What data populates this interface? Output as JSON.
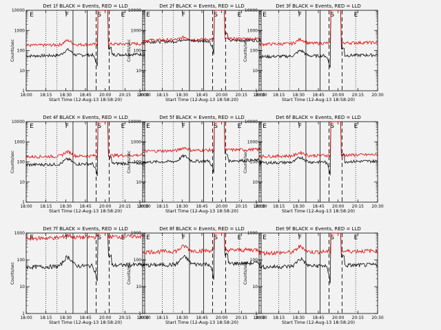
{
  "xlabel": "Start Time (12-Aug-13 18:58:20)",
  "ylabel": "Counts/sec",
  "x_tick_labels": [
    "18:00",
    "18:15",
    "18:30",
    "18:45",
    "20:00",
    "20:15",
    "20:30"
  ],
  "y_tick_labels": [
    "1",
    "10",
    "100",
    "1000",
    "10000"
  ],
  "colors": {
    "events": "#000000",
    "lld": "#dd0000",
    "background": "#f2f2f2"
  },
  "chart_data": [
    {
      "type": "line",
      "title": "Det 1f BLACK = Events, RED = LLD",
      "ylim": [
        1,
        10000
      ],
      "log_y": true,
      "markers": [
        "E",
        "F",
        "S",
        "E"
      ],
      "series": [
        {
          "color": "black",
          "level": 60,
          "bump": 110
        },
        {
          "color": "red",
          "level": 200,
          "bump": 320
        }
      ]
    },
    {
      "type": "line",
      "title": "Det 2f BLACK = Events, RED = LLD",
      "ylim": [
        1,
        10000
      ],
      "log_y": true,
      "markers": [
        "E",
        "F",
        "S",
        "E"
      ],
      "series": [
        {
          "color": "black",
          "level": 300,
          "bump": 380
        },
        {
          "color": "red",
          "level": 360,
          "bump": 470
        }
      ]
    },
    {
      "type": "line",
      "title": "Det 3f BLACK = Events, RED = LLD",
      "ylim": [
        1,
        10000
      ],
      "log_y": true,
      "markers": [
        "E",
        "F",
        "S",
        "E"
      ],
      "series": [
        {
          "color": "black",
          "level": 55,
          "bump": 100
        },
        {
          "color": "red",
          "level": 230,
          "bump": 360
        }
      ]
    },
    {
      "type": "line",
      "title": "Det 4f BLACK = Events, RED = LLD",
      "ylim": [
        1,
        10000
      ],
      "log_y": true,
      "markers": [
        "E",
        "F",
        "S",
        "E"
      ],
      "series": [
        {
          "color": "black",
          "level": 80,
          "bump": 140
        },
        {
          "color": "red",
          "level": 200,
          "bump": 330
        }
      ]
    },
    {
      "type": "line",
      "title": "Det 5f BLACK = Events, RED = LLD",
      "ylim": [
        1,
        10000
      ],
      "log_y": true,
      "markers": [
        "E",
        "F",
        "S",
        "E"
      ],
      "series": [
        {
          "color": "black",
          "level": 110,
          "bump": 200
        },
        {
          "color": "red",
          "level": 380,
          "bump": 520
        }
      ]
    },
    {
      "type": "line",
      "title": "Det 6f BLACK = Events, RED = LLD",
      "ylim": [
        1,
        10000
      ],
      "log_y": true,
      "markers": [
        "E",
        "F",
        "S",
        "E"
      ],
      "series": [
        {
          "color": "black",
          "level": 100,
          "bump": 170
        },
        {
          "color": "red",
          "level": 210,
          "bump": 300
        }
      ]
    },
    {
      "type": "line",
      "title": "Det 7f BLACK = Events, RED = LLD",
      "ylim": [
        1,
        1000
      ],
      "log_y": true,
      "markers": [
        "E",
        "F",
        "S",
        "E"
      ],
      "series": [
        {
          "color": "black",
          "level": 60,
          "bump": 130
        },
        {
          "color": "red",
          "level": 700,
          "bump": 850
        }
      ]
    },
    {
      "type": "line",
      "title": "Det 8f BLACK = Events, RED = LLD",
      "ylim": [
        1,
        1000
      ],
      "log_y": true,
      "markers": [
        "E",
        "F",
        "S",
        "E"
      ],
      "series": [
        {
          "color": "black",
          "level": 70,
          "bump": 130
        },
        {
          "color": "red",
          "level": 220,
          "bump": 330
        }
      ]
    },
    {
      "type": "line",
      "title": "Det 9f BLACK = Events, RED = LLD",
      "ylim": [
        1,
        1000
      ],
      "log_y": true,
      "markers": [
        "E",
        "F",
        "S",
        "E"
      ],
      "series": [
        {
          "color": "black",
          "level": 60,
          "bump": 110
        },
        {
          "color": "red",
          "level": 200,
          "bump": 320
        }
      ]
    }
  ]
}
